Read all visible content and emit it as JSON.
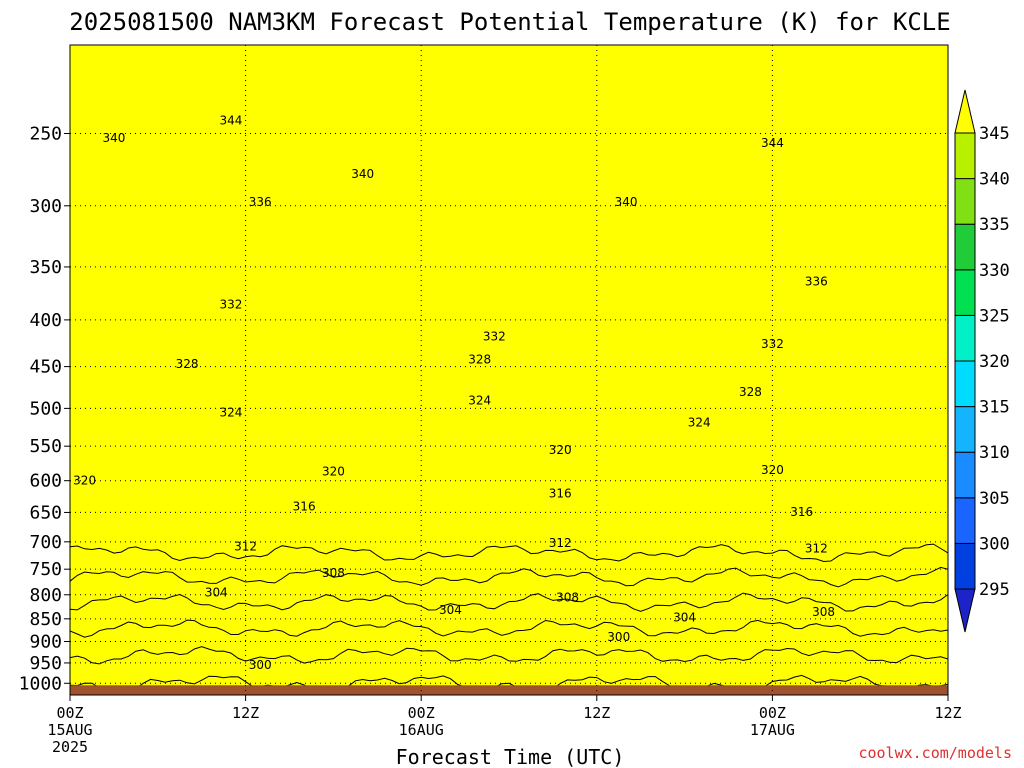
{
  "chart_data": {
    "type": "heatmap",
    "title": "2025081500 NAM3KM Forecast Potential Temperature (K) for KCLE",
    "xlabel": "Forecast Time (UTC)",
    "credit": "coolwx.com/models",
    "x_ticks": [
      {
        "h": 0,
        "lines": [
          "00Z",
          "15AUG",
          "2025"
        ]
      },
      {
        "h": 12,
        "lines": [
          "12Z"
        ]
      },
      {
        "h": 24,
        "lines": [
          "00Z",
          "16AUG"
        ]
      },
      {
        "h": 36,
        "lines": [
          "12Z"
        ]
      },
      {
        "h": 48,
        "lines": [
          "00Z",
          "17AUG"
        ]
      },
      {
        "h": 60,
        "lines": [
          "12Z"
        ]
      }
    ],
    "xlim_hours": [
      0,
      60
    ],
    "y_ticks": [
      "250",
      "300",
      "350",
      "400",
      "450",
      "500",
      "550",
      "600",
      "650",
      "700",
      "750",
      "800",
      "850",
      "900",
      "950",
      "1000"
    ],
    "ylim_hpa": [
      200,
      1030
    ],
    "y_scale": "log",
    "grid": "dotted",
    "colorbar": {
      "levels": [
        "295",
        "300",
        "305",
        "310",
        "315",
        "320",
        "325",
        "330",
        "335",
        "340",
        "345"
      ],
      "colors": [
        "#1c24c8",
        "#0040e0",
        "#1a64ff",
        "#1a8cff",
        "#14b4ff",
        "#00dcff",
        "#00f0c8",
        "#00e050",
        "#20cc38",
        "#80e014",
        "#b8f000",
        "#ffff00"
      ]
    },
    "ground_color": "#a0522d",
    "contour_interval_k": 2,
    "contour_labels": [
      {
        "v": "344",
        "h": 11.0,
        "p": 242
      },
      {
        "v": "340",
        "h": 3.0,
        "p": 253
      },
      {
        "v": "340",
        "h": 20.0,
        "p": 277
      },
      {
        "v": "344",
        "h": 48.0,
        "p": 256
      },
      {
        "v": "340",
        "h": 38.0,
        "p": 297
      },
      {
        "v": "336",
        "h": 13.0,
        "p": 297
      },
      {
        "v": "336",
        "h": 51.0,
        "p": 363
      },
      {
        "v": "332",
        "h": 11.0,
        "p": 385
      },
      {
        "v": "332",
        "h": 29.0,
        "p": 417
      },
      {
        "v": "332",
        "h": 48.0,
        "p": 425
      },
      {
        "v": "328",
        "h": 8.0,
        "p": 447
      },
      {
        "v": "328",
        "h": 28.0,
        "p": 442
      },
      {
        "v": "328",
        "h": 46.5,
        "p": 480
      },
      {
        "v": "324",
        "h": 28.0,
        "p": 490
      },
      {
        "v": "324",
        "h": 11.0,
        "p": 505
      },
      {
        "v": "324",
        "h": 43.0,
        "p": 518
      },
      {
        "v": "320",
        "h": 33.5,
        "p": 555
      },
      {
        "v": "320",
        "h": 1.0,
        "p": 600
      },
      {
        "v": "320",
        "h": 18.0,
        "p": 586
      },
      {
        "v": "320",
        "h": 48.0,
        "p": 584
      },
      {
        "v": "316",
        "h": 33.5,
        "p": 620
      },
      {
        "v": "316",
        "h": 16.0,
        "p": 640
      },
      {
        "v": "316",
        "h": 50.0,
        "p": 649
      },
      {
        "v": "312",
        "h": 12.0,
        "p": 708
      },
      {
        "v": "312",
        "h": 33.5,
        "p": 702
      },
      {
        "v": "312",
        "h": 51.0,
        "p": 712
      },
      {
        "v": "308",
        "h": 18.0,
        "p": 757
      },
      {
        "v": "308",
        "h": 34.0,
        "p": 805
      },
      {
        "v": "308",
        "h": 51.5,
        "p": 836
      },
      {
        "v": "304",
        "h": 10.0,
        "p": 795
      },
      {
        "v": "304",
        "h": 26.0,
        "p": 831
      },
      {
        "v": "304",
        "h": 42.0,
        "p": 847
      },
      {
        "v": "300",
        "h": 37.5,
        "p": 890
      },
      {
        "v": "300",
        "h": 13.0,
        "p": 955
      }
    ]
  }
}
